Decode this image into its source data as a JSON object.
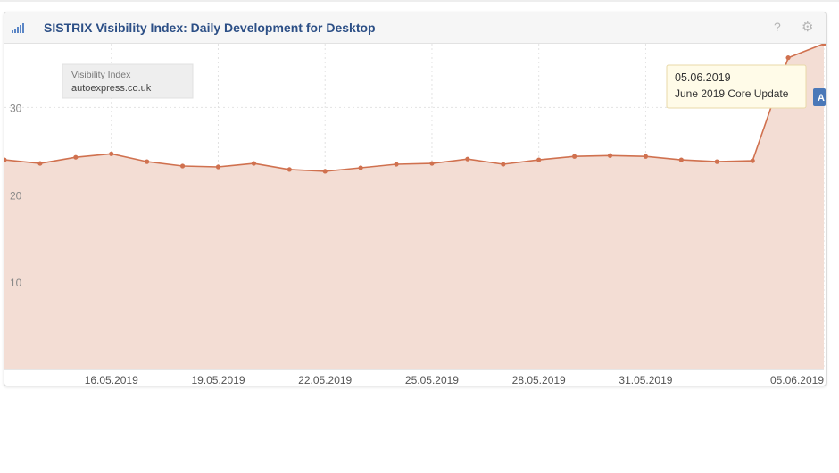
{
  "widget": {
    "title": "SISTRIX Visibility Index: Daily Development for Desktop",
    "help_icon": "?",
    "settings_icon": "⚙"
  },
  "legend_box": {
    "label": "Visibility Index",
    "domain": "autoexpress.co.uk"
  },
  "tooltip": {
    "date": "05.06.2019",
    "event": "June 2019 Core Update",
    "marker_letter": "A"
  },
  "colors": {
    "line": "#d0714f",
    "fill": "#f3ddd4",
    "title": "#2c4f86",
    "marker": "#4a78b8"
  },
  "chart_data": {
    "type": "area",
    "title": "SISTRIX Visibility Index: Daily Development for Desktop",
    "series": [
      {
        "name": "autoexpress.co.uk",
        "x": [
          "13.05.2019",
          "14.05.2019",
          "15.05.2019",
          "16.05.2019",
          "17.05.2019",
          "18.05.2019",
          "19.05.2019",
          "20.05.2019",
          "21.05.2019",
          "22.05.2019",
          "23.05.2019",
          "24.05.2019",
          "25.05.2019",
          "26.05.2019",
          "27.05.2019",
          "28.05.2019",
          "29.05.2019",
          "30.05.2019",
          "31.05.2019",
          "01.06.2019",
          "02.06.2019",
          "03.06.2019",
          "04.06.2019",
          "05.06.2019"
        ],
        "values": [
          24.0,
          23.6,
          24.3,
          24.7,
          23.8,
          23.3,
          23.2,
          23.6,
          22.9,
          22.7,
          23.1,
          23.5,
          23.6,
          24.1,
          23.5,
          24.0,
          24.4,
          24.5,
          24.4,
          24.0,
          23.8,
          23.9,
          35.7,
          37.3
        ]
      }
    ],
    "x_tick_labels": [
      "16.05.2019",
      "19.05.2019",
      "22.05.2019",
      "25.05.2019",
      "28.05.2019",
      "31.05.2019",
      "05.06.2019"
    ],
    "y_tick_labels": [
      "10",
      "20",
      "30"
    ],
    "ylim": [
      0,
      37.3
    ],
    "grid": true
  }
}
